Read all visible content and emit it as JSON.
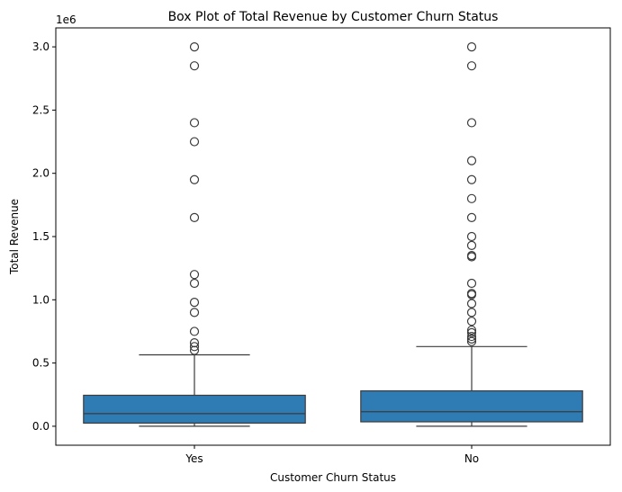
{
  "chart_data": {
    "type": "box",
    "title": "Box Plot of Total Revenue by Customer Churn Status",
    "xlabel": "Customer Churn Status",
    "ylabel": "Total Revenue",
    "y_offset_label": "1e6",
    "categories": [
      "Yes",
      "No"
    ],
    "y_ticks": [
      0.0,
      0.5,
      1.0,
      1.5,
      2.0,
      2.5,
      3.0
    ],
    "y_tick_labels": [
      "0.0",
      "0.5",
      "1.0",
      "1.5",
      "2.0",
      "2.5",
      "3.0"
    ],
    "ylim": [
      -150000,
      3150000
    ],
    "box_color": "#2f7bb4",
    "line_color": "#3b3b3b",
    "boxes": [
      {
        "category": "Yes",
        "whisker_low": 0,
        "q1": 25000,
        "median": 100000,
        "q3": 245000,
        "whisker_high": 565000,
        "outliers": [
          600000,
          630000,
          660000,
          750000,
          900000,
          980000,
          1130000,
          1200000,
          1650000,
          1950000,
          2250000,
          2400000,
          2850000,
          3000000
        ]
      },
      {
        "category": "No",
        "whisker_low": 0,
        "q1": 35000,
        "median": 115000,
        "q3": 280000,
        "whisker_high": 630000,
        "outliers": [
          670000,
          690000,
          710000,
          740000,
          760000,
          830000,
          900000,
          970000,
          1040000,
          1050000,
          1130000,
          1340000,
          1350000,
          1430000,
          1500000,
          1650000,
          1800000,
          1950000,
          2100000,
          2400000,
          2850000,
          3000000
        ]
      }
    ]
  }
}
